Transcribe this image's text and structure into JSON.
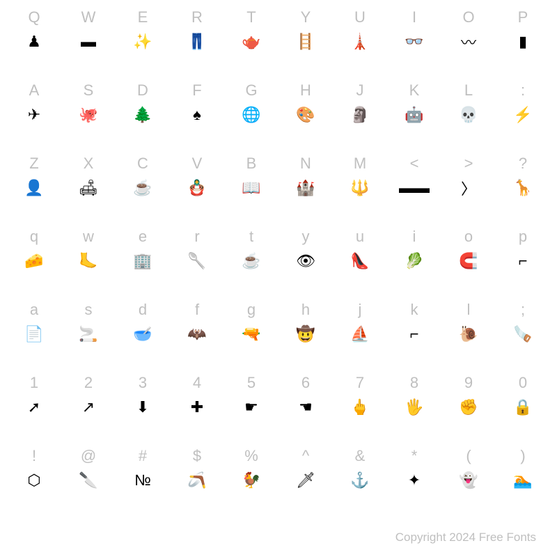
{
  "grid": {
    "rows": 7,
    "cols": 10,
    "label_color": "#bfbfbf",
    "label_fontsize": 22,
    "glyph_color": "#000000",
    "glyph_fontsize": 22,
    "background_color": "#ffffff",
    "cells": [
      [
        {
          "label": "Q",
          "glyph": "♟"
        },
        {
          "label": "W",
          "glyph": "▬"
        },
        {
          "label": "E",
          "glyph": "✨"
        },
        {
          "label": "R",
          "glyph": "👖"
        },
        {
          "label": "T",
          "glyph": "🫖"
        },
        {
          "label": "Y",
          "glyph": "🪜"
        },
        {
          "label": "U",
          "glyph": "🗼"
        },
        {
          "label": "I",
          "glyph": "👓"
        },
        {
          "label": "O",
          "glyph": "〰"
        },
        {
          "label": "P",
          "glyph": "▮"
        }
      ],
      [
        {
          "label": "A",
          "glyph": "✈"
        },
        {
          "label": "S",
          "glyph": "🐙"
        },
        {
          "label": "D",
          "glyph": "🌲"
        },
        {
          "label": "F",
          "glyph": "♠"
        },
        {
          "label": "G",
          "glyph": "🌐"
        },
        {
          "label": "H",
          "glyph": "🎨"
        },
        {
          "label": "J",
          "glyph": "🗿"
        },
        {
          "label": "K",
          "glyph": "🤖"
        },
        {
          "label": "L",
          "glyph": "💀"
        },
        {
          "label": ":",
          "glyph": "⚡"
        }
      ],
      [
        {
          "label": "Z",
          "glyph": "👤"
        },
        {
          "label": "X",
          "glyph": "🛋"
        },
        {
          "label": "C",
          "glyph": "☕"
        },
        {
          "label": "V",
          "glyph": "🪆"
        },
        {
          "label": "B",
          "glyph": "📖"
        },
        {
          "label": "N",
          "glyph": "🏰"
        },
        {
          "label": "M",
          "glyph": "🔱"
        },
        {
          "label": "<",
          "glyph": "▬▬"
        },
        {
          "label": ">",
          "glyph": "〉"
        },
        {
          "label": "?",
          "glyph": "🦒"
        }
      ],
      [
        {
          "label": "q",
          "glyph": "🧀"
        },
        {
          "label": "w",
          "glyph": "🦶"
        },
        {
          "label": "e",
          "glyph": "🏢"
        },
        {
          "label": "r",
          "glyph": "🥄"
        },
        {
          "label": "t",
          "glyph": "☕"
        },
        {
          "label": "y",
          "glyph": "👁"
        },
        {
          "label": "u",
          "glyph": "👠"
        },
        {
          "label": "i",
          "glyph": "🥬"
        },
        {
          "label": "o",
          "glyph": "🧲"
        },
        {
          "label": "p",
          "glyph": "⌐"
        }
      ],
      [
        {
          "label": "a",
          "glyph": "📄"
        },
        {
          "label": "s",
          "glyph": "🚬"
        },
        {
          "label": "d",
          "glyph": "🥣"
        },
        {
          "label": "f",
          "glyph": "🦇"
        },
        {
          "label": "g",
          "glyph": "🔫"
        },
        {
          "label": "h",
          "glyph": "🤠"
        },
        {
          "label": "j",
          "glyph": "⛵"
        },
        {
          "label": "k",
          "glyph": "⌐"
        },
        {
          "label": "l",
          "glyph": "🐌"
        },
        {
          "label": ";",
          "glyph": "🪚"
        }
      ],
      [
        {
          "label": "1",
          "glyph": "➚"
        },
        {
          "label": "2",
          "glyph": "↗"
        },
        {
          "label": "3",
          "glyph": "⬇"
        },
        {
          "label": "4",
          "glyph": "✚"
        },
        {
          "label": "5",
          "glyph": "☛"
        },
        {
          "label": "6",
          "glyph": "☚"
        },
        {
          "label": "7",
          "glyph": "🖕"
        },
        {
          "label": "8",
          "glyph": "🖐"
        },
        {
          "label": "9",
          "glyph": "✊"
        },
        {
          "label": "0",
          "glyph": "🔒"
        }
      ],
      [
        {
          "label": "!",
          "glyph": "⬡"
        },
        {
          "label": "@",
          "glyph": "🔪"
        },
        {
          "label": "#",
          "glyph": "№"
        },
        {
          "label": "$",
          "glyph": "🪃"
        },
        {
          "label": "%",
          "glyph": "🐓"
        },
        {
          "label": "^",
          "glyph": "🗡"
        },
        {
          "label": "&",
          "glyph": "⚓"
        },
        {
          "label": "*",
          "glyph": "✦"
        },
        {
          "label": "(",
          "glyph": "👻"
        },
        {
          "label": ")",
          "glyph": "🏊"
        }
      ]
    ]
  },
  "footer": {
    "copyright": "Copyright 2024 Free Fonts",
    "color": "#bfbfbf",
    "fontsize": 17
  }
}
